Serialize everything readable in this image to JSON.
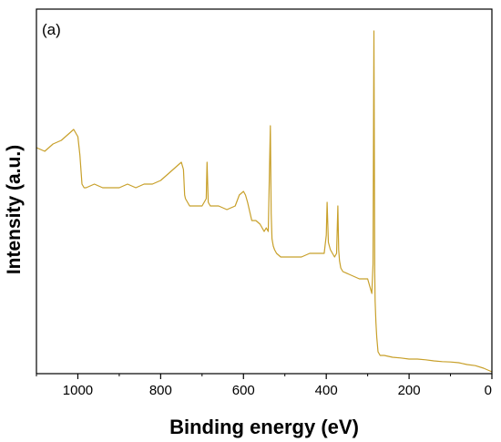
{
  "chart_data": {
    "type": "line",
    "panel_label": "(a)",
    "xlabel": "Binding energy (eV)",
    "ylabel": "Intensity (a.u.)",
    "xlim": [
      1100,
      0
    ],
    "x_reversed": true,
    "ylim": [
      0,
      100
    ],
    "y_tick_labels_shown": false,
    "x_ticks": [
      1000,
      800,
      600,
      400,
      200,
      0
    ],
    "x_tick_labels": [
      "1000",
      "800",
      "600",
      "400",
      "200",
      "0"
    ],
    "grid": false,
    "line_color": "#C8A02A",
    "series": [
      {
        "x": [
          1100,
          1080,
          1060,
          1040,
          1020,
          1010,
          1000,
          995,
          990,
          985,
          980,
          960,
          940,
          920,
          900,
          880,
          860,
          840,
          820,
          800,
          780,
          760,
          750,
          745,
          742,
          740,
          735,
          730,
          720,
          700,
          690,
          688,
          685,
          680,
          660,
          640,
          620,
          610,
          600,
          595,
          590,
          580,
          570,
          560,
          550,
          545,
          540,
          535,
          533,
          531,
          528,
          525,
          520,
          510,
          500,
          480,
          460,
          440,
          420,
          405,
          400,
          398,
          395,
          390,
          380,
          375,
          372,
          370,
          368,
          365,
          360,
          340,
          320,
          300,
          295,
          290,
          287,
          285,
          283,
          282,
          280,
          278,
          275,
          270,
          260,
          240,
          220,
          200,
          180,
          160,
          140,
          120,
          100,
          80,
          60,
          40,
          20,
          10,
          0
        ],
        "y": [
          62,
          61,
          63,
          64,
          66,
          67,
          65,
          60,
          52,
          51,
          51,
          52,
          51,
          51,
          51,
          52,
          51,
          52,
          52,
          53,
          55,
          57,
          58,
          56,
          49,
          48,
          47,
          46,
          46,
          46,
          48,
          58,
          47,
          46,
          46,
          45,
          46,
          49,
          50,
          49,
          47,
          42,
          42,
          41,
          39,
          40,
          39,
          68,
          44,
          37,
          35,
          34,
          33,
          32,
          32,
          32,
          32,
          33,
          33,
          33,
          38,
          47,
          36,
          34,
          32,
          33,
          46,
          34,
          31,
          29,
          28,
          27,
          26,
          26,
          24,
          22,
          30,
          94,
          28,
          20,
          14,
          10,
          6,
          5,
          5,
          4.5,
          4.3,
          4,
          4,
          3.8,
          3.5,
          3.3,
          3.2,
          3,
          2.5,
          2.2,
          1.5,
          1,
          0.5
        ]
      }
    ]
  }
}
